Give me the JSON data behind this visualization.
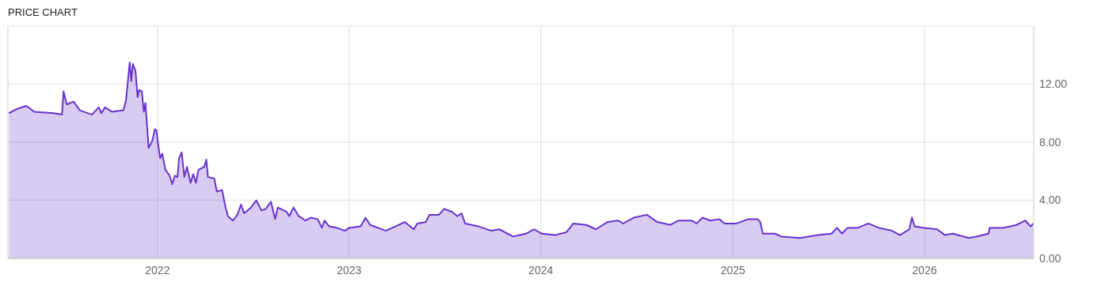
{
  "chart_data": {
    "type": "area",
    "title": "PRICE CHART",
    "x": [
      "2021-03-24",
      "2021-04-09",
      "2021-04-26",
      "2021-05-11",
      "2021-06-17",
      "2021-07-03",
      "2021-07-06",
      "2021-07-12",
      "2021-07-25",
      "2021-08-06",
      "2021-08-29",
      "2021-09-11",
      "2021-09-16",
      "2021-09-23",
      "2021-10-06",
      "2021-10-28",
      "2021-11-02",
      "2021-11-09",
      "2021-11-12",
      "2021-11-15",
      "2021-11-20",
      "2021-11-24",
      "2021-11-27",
      "2021-12-02",
      "2021-12-06",
      "2021-12-09",
      "2021-12-15",
      "2021-12-22",
      "2021-12-27",
      "2021-12-30",
      "2022-01-02",
      "2022-01-06",
      "2022-01-10",
      "2022-01-16",
      "2022-01-24",
      "2022-01-29",
      "2022-02-03",
      "2022-02-08",
      "2022-02-11",
      "2022-02-16",
      "2022-02-21",
      "2022-02-26",
      "2022-03-05",
      "2022-03-10",
      "2022-03-15",
      "2022-03-20",
      "2022-03-31",
      "2022-04-04",
      "2022-04-07",
      "2022-04-19",
      "2022-04-24",
      "2022-05-04",
      "2022-05-10",
      "2022-05-15",
      "2022-05-25",
      "2022-06-02",
      "2022-06-09",
      "2022-06-15",
      "2022-06-28",
      "2022-07-08",
      "2022-07-18",
      "2022-07-26",
      "2022-08-05",
      "2022-08-13",
      "2022-08-18",
      "2022-09-04",
      "2022-09-09",
      "2022-09-17",
      "2022-09-27",
      "2022-10-10",
      "2022-10-20",
      "2022-11-02",
      "2022-11-10",
      "2022-11-15",
      "2022-11-24",
      "2022-12-09",
      "2022-12-24",
      "2023-01-01",
      "2023-01-23",
      "2023-02-01",
      "2023-02-10",
      "2023-03-12",
      "2023-04-17",
      "2023-05-04",
      "2023-05-11",
      "2023-05-27",
      "2023-06-03",
      "2023-06-21",
      "2023-07-01",
      "2023-07-16",
      "2023-07-26",
      "2023-08-03",
      "2023-08-10",
      "2023-09-04",
      "2023-09-29",
      "2023-10-14",
      "2023-11-09",
      "2023-12-04",
      "2023-12-19",
      "2024-01-03",
      "2024-01-28",
      "2024-02-19",
      "2024-03-03",
      "2024-03-28",
      "2024-04-15",
      "2024-05-07",
      "2024-05-27",
      "2024-06-06",
      "2024-06-26",
      "2024-07-21",
      "2024-08-10",
      "2024-09-04",
      "2024-09-19",
      "2024-10-14",
      "2024-10-24",
      "2024-11-04",
      "2024-11-19",
      "2024-12-06",
      "2024-12-16",
      "2025-01-08",
      "2025-01-30",
      "2025-02-17",
      "2025-02-22",
      "2025-02-27",
      "2025-03-22",
      "2025-04-03",
      "2025-05-09",
      "2025-06-13",
      "2025-07-08",
      "2025-07-18",
      "2025-07-28",
      "2025-08-07",
      "2025-08-27",
      "2025-09-16",
      "2025-10-06",
      "2025-10-31",
      "2025-11-15",
      "2025-12-03",
      "2025-12-08",
      "2025-12-13",
      "2025-12-31",
      "2026-01-25",
      "2026-02-09",
      "2026-02-24",
      "2026-03-26",
      "2026-04-10",
      "2026-05-03",
      "2026-05-05",
      "2026-05-31",
      "2026-06-25",
      "2026-07-12",
      "2026-07-22",
      "2026-07-27"
    ],
    "series": [
      {
        "color": "#6633cc",
        "values": [
          10.0,
          10.3,
          10.5,
          10.1,
          10.0,
          9.9,
          11.5,
          10.6,
          10.8,
          10.2,
          9.9,
          10.4,
          10.0,
          10.4,
          10.1,
          10.2,
          10.9,
          13.5,
          12.2,
          13.4,
          12.9,
          11.1,
          11.6,
          11.5,
          10.1,
          10.7,
          7.6,
          8.1,
          8.9,
          8.8,
          7.9,
          6.9,
          7.2,
          6.1,
          5.7,
          5.1,
          5.7,
          5.6,
          6.9,
          7.3,
          5.6,
          6.3,
          5.2,
          5.8,
          5.2,
          6.1,
          6.3,
          6.8,
          5.6,
          5.5,
          4.6,
          4.7,
          3.6,
          2.9,
          2.6,
          3.0,
          3.7,
          3.1,
          3.5,
          4.0,
          3.3,
          3.4,
          3.9,
          2.7,
          3.5,
          3.2,
          2.9,
          3.5,
          2.9,
          2.6,
          2.8,
          2.7,
          2.1,
          2.6,
          2.2,
          2.1,
          1.9,
          2.1,
          2.2,
          2.8,
          2.3,
          1.9,
          2.5,
          2.0,
          2.4,
          2.5,
          3.0,
          3.0,
          3.4,
          3.2,
          2.9,
          3.1,
          2.4,
          2.2,
          1.9,
          2.0,
          1.5,
          1.7,
          2.0,
          1.7,
          1.6,
          1.8,
          2.4,
          2.3,
          2.0,
          2.5,
          2.6,
          2.4,
          2.8,
          3.0,
          2.5,
          2.3,
          2.6,
          2.6,
          2.4,
          2.8,
          2.6,
          2.7,
          2.4,
          2.4,
          2.7,
          2.7,
          2.5,
          1.7,
          1.7,
          1.5,
          1.4,
          1.6,
          1.7,
          2.1,
          1.7,
          2.1,
          2.1,
          2.4,
          2.1,
          1.9,
          1.6,
          2.0,
          2.8,
          2.2,
          2.1,
          2.0,
          1.6,
          1.7,
          1.4,
          1.5,
          1.7,
          2.1,
          2.1,
          2.3,
          2.6,
          2.2,
          2.4
        ]
      }
    ],
    "xlim": [
      "2021-03-22",
      "2026-07-28"
    ],
    "xticks": [
      "2022",
      "2023",
      "2024",
      "2025",
      "2026"
    ],
    "ylim": [
      0,
      16
    ],
    "yticks": [
      {
        "value": 0,
        "label": "0.00"
      },
      {
        "value": 4,
        "label": "4.00"
      },
      {
        "value": 8,
        "label": "8.00"
      },
      {
        "value": 12,
        "label": "12.00"
      }
    ],
    "grid": true
  }
}
